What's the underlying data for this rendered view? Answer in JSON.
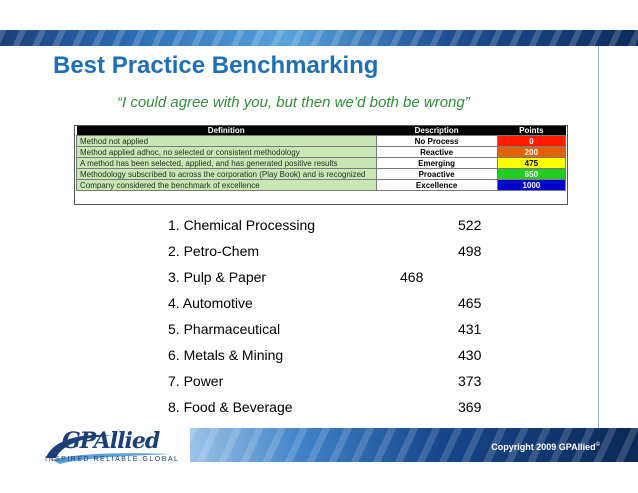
{
  "slide": {
    "title": "Best Practice Benchmarking",
    "quote": "“I could agree with you, but then we’d both be wrong”"
  },
  "table": {
    "headers": [
      "Definition",
      "Description",
      "Points"
    ],
    "rows": [
      {
        "definition": "Method not applied",
        "description": "No Process",
        "points": "0",
        "color": "#ff1a00"
      },
      {
        "definition": "Method applied adhoc, no selected or consistent methodology",
        "description": "Reactive",
        "points": "200",
        "color": "#e36200"
      },
      {
        "definition": "A method has been selected, applied, and has generated positive results",
        "description": "Emerging",
        "points": "475",
        "color": "#ffff00"
      },
      {
        "definition": "Methodology subscribed to across the corporation (Play Book) and is recognized",
        "description": "Proactive",
        "points": "650",
        "color": "#22cc22"
      },
      {
        "definition": "Company considered the benchmark of excellence",
        "description": "Excellence",
        "points": "1000",
        "color": "#0000cc"
      }
    ]
  },
  "rankings": [
    {
      "label": "1.  Chemical Processing",
      "value": "522"
    },
    {
      "label": "2.  Petro-Chem",
      "value": "498"
    },
    {
      "label": "3.  Pulp & Paper",
      "value": "468"
    },
    {
      "label": "4.  Automotive",
      "value": "465"
    },
    {
      "label": "5.  Pharmaceutical",
      "value": "431"
    },
    {
      "label": "6.  Metals & Mining",
      "value": "430"
    },
    {
      "label": "7.  Power",
      "value": "373"
    },
    {
      "label": "8.  Food & Beverage",
      "value": "369"
    }
  ],
  "footer": {
    "copyright": "Copyright 2009 GPAllied",
    "copyright_mark": "©",
    "logo_text": "GPAllied",
    "tagline": "INSPIRED.RELIABLE.GLOBAL"
  }
}
